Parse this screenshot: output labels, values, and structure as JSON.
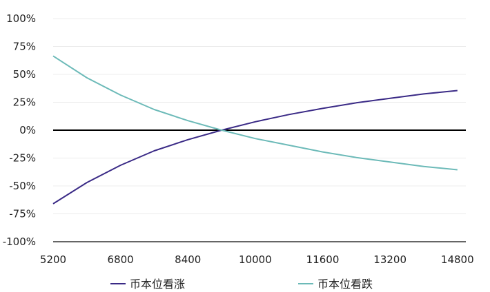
{
  "chart_data": {
    "type": "line",
    "title": "",
    "xlabel": "",
    "ylabel": "",
    "x_ticks": [
      "5200",
      "6800",
      "8400",
      "10000",
      "11600",
      "13200",
      "14800"
    ],
    "y_ticks": [
      "100%",
      "75%",
      "50%",
      "25%",
      "0%",
      "-25%",
      "-50%",
      "-75%",
      "-100%"
    ],
    "xlim": [
      5200,
      15000
    ],
    "ylim": [
      -100,
      100
    ],
    "grid": true,
    "zero_line": true,
    "legend_position": "bottom",
    "x": [
      5200,
      6000,
      6800,
      7600,
      8400,
      9200,
      10000,
      10800,
      11600,
      12400,
      13200,
      14000,
      14800
    ],
    "series": [
      {
        "name": "币本位看涨",
        "color": "#3a2a86",
        "values": [
          -66,
          -47,
          -31.5,
          -18.5,
          -8.5,
          0,
          7.5,
          14,
          19.5,
          24.5,
          28.5,
          32.5,
          35.5
        ]
      },
      {
        "name": "币本位看跌",
        "color": "#6cbab8",
        "values": [
          66.5,
          47,
          31.5,
          18.5,
          8.5,
          0,
          -7.5,
          -13.5,
          -19.5,
          -24.5,
          -28.5,
          -32.5,
          -35.5
        ]
      }
    ]
  }
}
